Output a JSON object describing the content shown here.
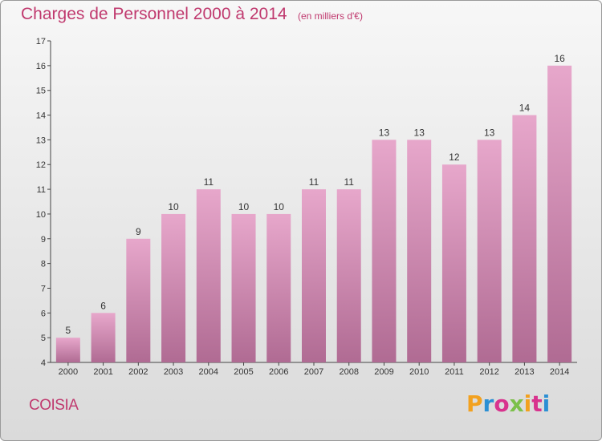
{
  "header": {
    "title": "Charges de Personnel 2000 à 2014",
    "unit_note": "(en milliers d'€)"
  },
  "footer": {
    "commune": "COISIA",
    "logo": "Proxiti"
  },
  "colors": {
    "accent": "#c0396e",
    "bar_top": "#e7a7cb",
    "bar_bottom": "#b06b93",
    "logo_letters": [
      "#f2a11f",
      "#2b8fd4",
      "#d8338e",
      "#7cc04a",
      "#f2a11f",
      "#d8338e",
      "#2b8fd4"
    ]
  },
  "chart_data": {
    "type": "bar",
    "title": "Charges de Personnel 2000 à 2014",
    "subtitle": "(en milliers d'€)",
    "categories": [
      "2000",
      "2001",
      "2002",
      "2003",
      "2004",
      "2005",
      "2006",
      "2007",
      "2008",
      "2009",
      "2010",
      "2011",
      "2012",
      "2013",
      "2014"
    ],
    "values": [
      5,
      6,
      9,
      10,
      11,
      10,
      10,
      11,
      11,
      13,
      13,
      12,
      13,
      14,
      16
    ],
    "ylim": [
      4,
      17
    ],
    "yticks": [
      4,
      5,
      6,
      7,
      8,
      9,
      10,
      11,
      12,
      13,
      14,
      15,
      16,
      17
    ],
    "grid": false,
    "data_labels": true
  }
}
